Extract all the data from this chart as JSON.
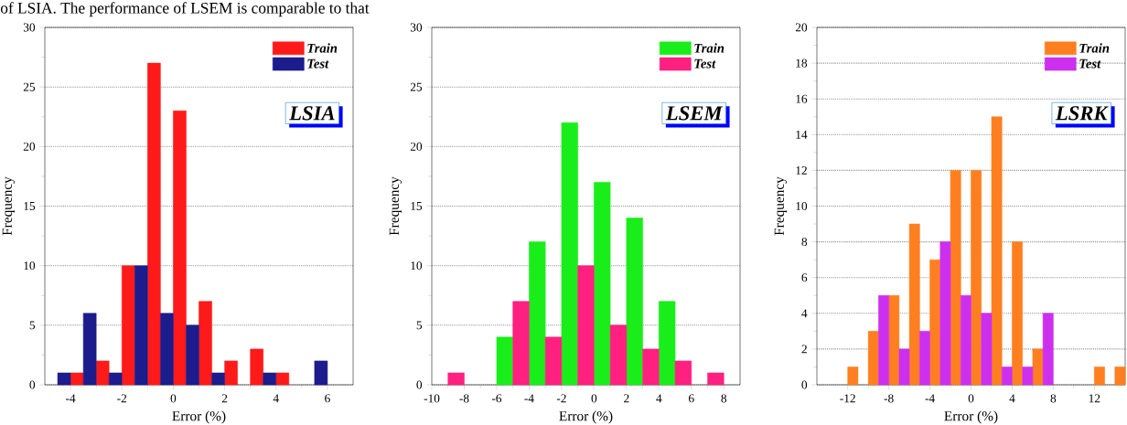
{
  "chart_data": [
    {
      "type": "bar",
      "xlabel": "Error (%)",
      "ylabel": "Frequency",
      "annotations": [
        "LSIA",
        "of LSIA. The performance of LSEM is comparable to that"
      ],
      "xlim": [
        -5,
        7
      ],
      "xticks": [
        -4,
        -2,
        0,
        2,
        4,
        6
      ],
      "ylim": [
        0,
        30
      ],
      "yticks": [
        0,
        5,
        10,
        15,
        20,
        25,
        30
      ],
      "grid": "y",
      "legend": "top right",
      "series": [
        {
          "name": "Train",
          "color": "#ff1a1a",
          "x": [
            -3.75,
            -2.75,
            -1.75,
            -0.75,
            0.25,
            1.25,
            2.25,
            3.25,
            4.25
          ],
          "values": [
            1,
            2,
            10,
            27,
            23,
            7,
            2,
            3,
            1
          ]
        },
        {
          "name": "Test",
          "color": "#1c1c8c",
          "x": [
            -4.25,
            -3.25,
            -2.25,
            -1.25,
            -0.25,
            0.75,
            1.75,
            3.75,
            5.75
          ],
          "values": [
            1,
            6,
            1,
            10,
            6,
            5,
            1,
            1,
            2
          ]
        }
      ]
    },
    {
      "type": "bar",
      "xlabel": "Error (%)",
      "ylabel": "Frequency",
      "annotations": [
        "LSEM"
      ],
      "xlim": [
        -10,
        9
      ],
      "xticks": [
        -10,
        -8,
        -6,
        -4,
        -2,
        0,
        2,
        4,
        6,
        8
      ],
      "ylim": [
        0,
        30
      ],
      "yticks": [
        0,
        5,
        10,
        15,
        20,
        25,
        30
      ],
      "grid": "y",
      "legend": "top right",
      "series": [
        {
          "name": "Train",
          "color": "#1aee1a",
          "x": [
            -5.5,
            -3.5,
            -1.5,
            0.5,
            2.5,
            4.5
          ],
          "values": [
            4,
            12,
            22,
            17,
            14,
            7
          ]
        },
        {
          "name": "Test",
          "color": "#ff2080",
          "x": [
            -8.5,
            -4.5,
            -2.5,
            -0.5,
            1.5,
            3.5,
            5.5,
            7.5
          ],
          "values": [
            1,
            7,
            4,
            10,
            5,
            3,
            2,
            1
          ]
        }
      ]
    },
    {
      "type": "bar",
      "xlabel": "Error (%)",
      "ylabel": "Frequency",
      "annotations": [
        "LSRK"
      ],
      "xlim": [
        -15,
        15
      ],
      "xticks": [
        -12,
        -8,
        -4,
        0,
        4,
        8,
        12
      ],
      "ylim": [
        0,
        20
      ],
      "yticks": [
        0,
        2,
        4,
        6,
        8,
        10,
        12,
        14,
        16,
        18,
        20
      ],
      "grid": "y",
      "legend": "top right",
      "series": [
        {
          "name": "Train",
          "color": "#ff7f20",
          "x": [
            -11.5,
            -9.5,
            -7.5,
            -5.5,
            -3.5,
            -1.5,
            0.5,
            2.5,
            4.5,
            6.5,
            12.5,
            14.5
          ],
          "values": [
            1,
            3,
            5,
            9,
            7,
            12,
            12,
            15,
            8,
            2,
            1,
            1
          ]
        },
        {
          "name": "Test",
          "color": "#cc30ee",
          "x": [
            -8.5,
            -6.5,
            -4.5,
            -2.5,
            -0.5,
            1.5,
            3.5,
            5.5,
            7.5
          ],
          "values": [
            5,
            2,
            3,
            8,
            5,
            4,
            1,
            1,
            4
          ]
        }
      ]
    }
  ]
}
